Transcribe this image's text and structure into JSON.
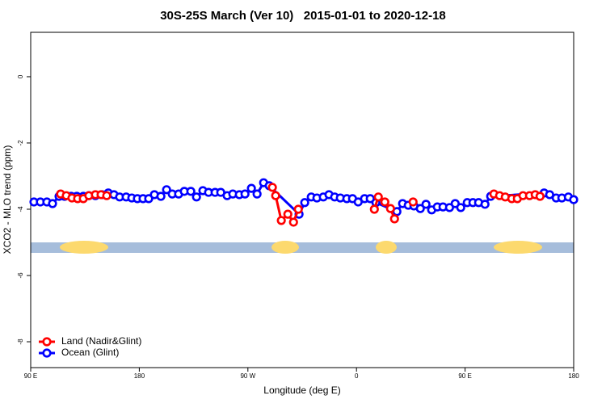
{
  "chart_data": {
    "type": "line",
    "title": "30S-25S March (Ver 10)   2015-01-01 to 2020-12-18",
    "xlabel": "Longitude (deg E)",
    "ylabel": "XCO2 - MLO trend (ppm)",
    "xlim": [
      90,
      540
    ],
    "ylim": [
      -8.78,
      1.34
    ],
    "xticks": [
      {
        "value": 90,
        "label": "90 E"
      },
      180,
      {
        "value": 270,
        "label": "90 W"
      },
      {
        "value": 360,
        "label": "0"
      },
      {
        "value": 450,
        "label": "90 E"
      },
      {
        "value": 540,
        "label": "180"
      }
    ],
    "yticks": [
      0,
      -2,
      -4,
      -6,
      -8
    ],
    "legend": "bottomleft",
    "series": [
      {
        "name": "Ocean (Glint)",
        "color": "#0000ff",
        "x": [
          92.7,
          98.0,
          103.4,
          108.1,
          113.5,
          118.1,
          123.5,
          128.2,
          133.6,
          138.2,
          143.6,
          149.0,
          154.3,
          159.0,
          163.7,
          169.1,
          173.8,
          178.4,
          183.1,
          187.8,
          192.5,
          197.9,
          202.6,
          207.3,
          212.6,
          217.3,
          222.7,
          227.4,
          232.7,
          237.4,
          242.8,
          247.5,
          252.8,
          257.5,
          262.9,
          267.6,
          272.9,
          277.6,
          283.0,
          287.7,
          312.4,
          317.1,
          322.5,
          327.2,
          332.5,
          337.2,
          341.9,
          346.6,
          352.0,
          356.7,
          361.4,
          366.7,
          371.4,
          376.1,
          393.5,
          398.2,
          402.9,
          407.6,
          412.9,
          417.6,
          422.3,
          427.0,
          431.7,
          437.1,
          441.8,
          446.4,
          451.8,
          456.5,
          461.2,
          466.5,
          471.2,
          515.5,
          520.1,
          525.5,
          530.2,
          535.6,
          540
        ],
        "values": [
          -3.78,
          -3.78,
          -3.78,
          -3.83,
          -3.61,
          -3.61,
          -3.61,
          -3.61,
          -3.61,
          -3.59,
          -3.59,
          -3.56,
          -3.51,
          -3.56,
          -3.63,
          -3.63,
          -3.66,
          -3.68,
          -3.68,
          -3.68,
          -3.56,
          -3.61,
          -3.41,
          -3.54,
          -3.54,
          -3.46,
          -3.46,
          -3.63,
          -3.44,
          -3.49,
          -3.49,
          -3.49,
          -3.59,
          -3.54,
          -3.56,
          -3.54,
          -3.37,
          -3.54,
          -3.2,
          -3.29,
          -4.15,
          -3.8,
          -3.63,
          -3.66,
          -3.63,
          -3.56,
          -3.63,
          -3.66,
          -3.68,
          -3.68,
          -3.78,
          -3.68,
          -3.68,
          -3.8,
          -4.07,
          -3.83,
          -3.88,
          -3.9,
          -3.98,
          -3.85,
          -4.02,
          -3.93,
          -3.93,
          -3.95,
          -3.83,
          -3.95,
          -3.8,
          -3.8,
          -3.8,
          -3.85,
          -3.61,
          -3.51,
          -3.56,
          -3.66,
          -3.66,
          -3.63,
          -3.71
        ]
      },
      {
        "name": "Land (Nadir&Glint)",
        "color": "#ff0000",
        "x": [
          114.8,
          119.5,
          124.2,
          128.9,
          133.6,
          138.2,
          143.6,
          148.3,
          153.0,
          null,
          290.3,
          293.0,
          297.7,
          303.1,
          307.8,
          311.8,
          null,
          374.8,
          378.1,
          383.5,
          388.2,
          391.5,
          null,
          406.9,
          null,
          473.9,
          478.6,
          483.3,
          488.7,
          493.3,
          498.0,
          503.4,
          508.1,
          512.1
        ],
        "values": [
          -3.54,
          -3.59,
          -3.66,
          -3.68,
          -3.68,
          -3.59,
          -3.56,
          -3.56,
          -3.59,
          null,
          -3.34,
          -3.59,
          -4.34,
          -4.15,
          -4.39,
          -4.0,
          null,
          -4.0,
          -3.63,
          -3.78,
          -3.98,
          -4.29,
          null,
          -3.78,
          null,
          -3.54,
          -3.59,
          -3.63,
          -3.68,
          -3.68,
          -3.59,
          -3.59,
          -3.56,
          -3.61
        ]
      }
    ]
  }
}
